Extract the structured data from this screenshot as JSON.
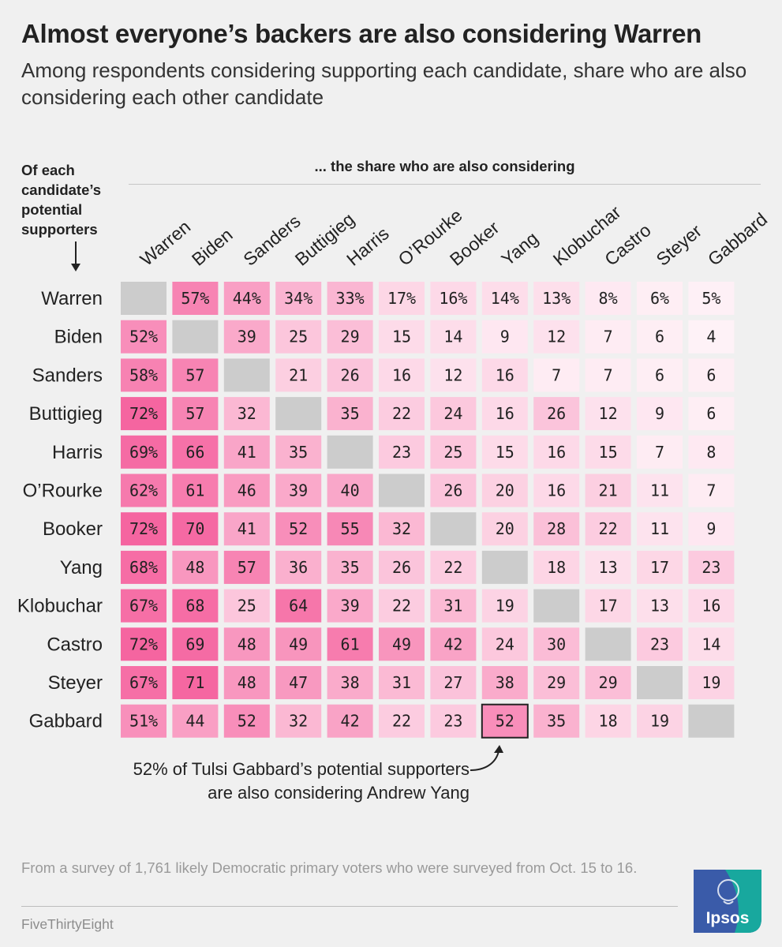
{
  "title": "Almost everyone’s backers are also considering Warren",
  "subtitle": "Among respondents considering supporting each candidate, share who are also considering each other candidate",
  "row_header": [
    "Of each",
    "candidate’s",
    "potential",
    "supporters"
  ],
  "column_header": "... the share who are also considering",
  "annotation": [
    "52% of Tulsi Gabbard’s potential supporters",
    "are also considering Andrew Yang"
  ],
  "source": "From a survey of 1,761 likely Democratic primary voters who were surveyed from Oct. 15 to 16.",
  "credit": "FiveThirtyEight",
  "logo_text": "Ipsos",
  "colors": {
    "background": "#f0f0f0",
    "diagonal_cell": "#cccccc",
    "heat_low": "#fffafc",
    "heat_high": "#f565a0",
    "highlight_border": "#222222",
    "logo_blue": "#3a5ba9",
    "logo_teal": "#18a89e"
  },
  "chart_data": {
    "type": "heatmap",
    "row_dimension": "Of each candidate’s potential supporters",
    "column_dimension": "... the share who are also considering",
    "candidates": [
      "Warren",
      "Biden",
      "Sanders",
      "Buttigieg",
      "Harris",
      "O’Rourke",
      "Booker",
      "Yang",
      "Klobuchar",
      "Castro",
      "Steyer",
      "Gabbard"
    ],
    "unit": "%",
    "percent_suffix_row": 0,
    "percent_suffix_col": 0,
    "values": [
      [
        null,
        57,
        44,
        34,
        33,
        17,
        16,
        14,
        13,
        8,
        6,
        5
      ],
      [
        52,
        null,
        39,
        25,
        29,
        15,
        14,
        9,
        12,
        7,
        6,
        4
      ],
      [
        58,
        57,
        null,
        21,
        26,
        16,
        12,
        16,
        7,
        7,
        6,
        6
      ],
      [
        72,
        57,
        32,
        null,
        35,
        22,
        24,
        16,
        26,
        12,
        9,
        6
      ],
      [
        69,
        66,
        41,
        35,
        null,
        23,
        25,
        15,
        16,
        15,
        7,
        8
      ],
      [
        62,
        61,
        46,
        39,
        40,
        null,
        26,
        20,
        16,
        21,
        11,
        7
      ],
      [
        72,
        70,
        41,
        52,
        55,
        32,
        null,
        20,
        28,
        22,
        11,
        9
      ],
      [
        68,
        48,
        57,
        36,
        35,
        26,
        22,
        null,
        18,
        13,
        17,
        23
      ],
      [
        67,
        68,
        25,
        64,
        39,
        22,
        31,
        19,
        null,
        17,
        13,
        16
      ],
      [
        72,
        69,
        48,
        49,
        61,
        49,
        42,
        24,
        30,
        null,
        23,
        14
      ],
      [
        67,
        71,
        48,
        47,
        38,
        31,
        27,
        38,
        29,
        29,
        null,
        19
      ],
      [
        51,
        44,
        52,
        32,
        42,
        22,
        23,
        52,
        35,
        18,
        19,
        null
      ]
    ],
    "highlight": {
      "row": "Gabbard",
      "column": "Yang",
      "value": 52
    }
  }
}
